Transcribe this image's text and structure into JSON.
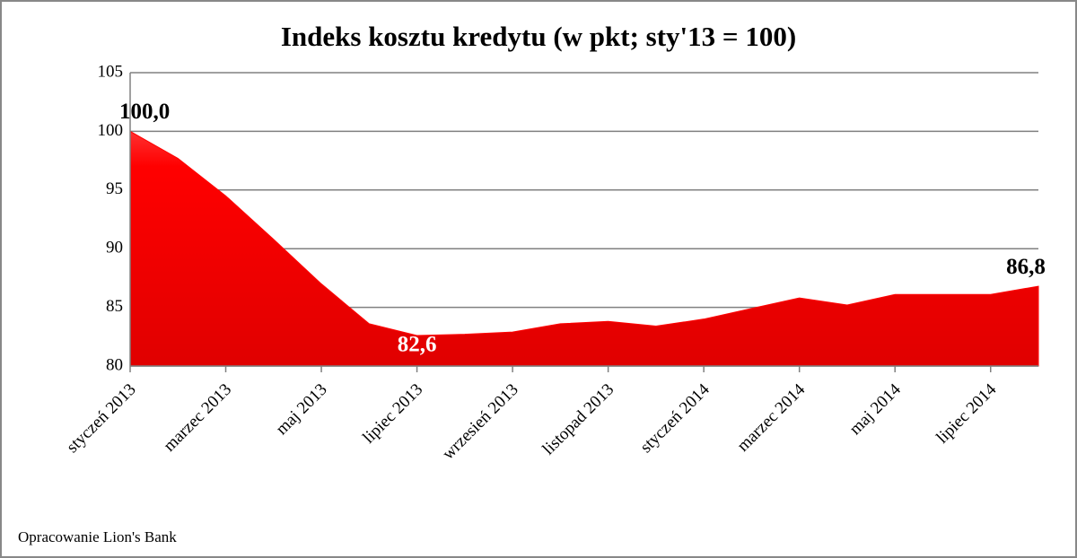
{
  "chart_data": {
    "type": "area",
    "title": "Indeks kosztu kredytu (w pkt; sty'13 = 100)",
    "categories": [
      "styczeń 2013",
      null,
      "marzec 2013",
      null,
      "maj 2013",
      null,
      "lipiec 2013",
      null,
      "wrzesień 2013",
      null,
      "listopad 2013",
      null,
      "styczeń 2014",
      null,
      "marzec 2014",
      null,
      "maj 2014",
      null,
      "lipiec 2014",
      null
    ],
    "values": [
      100.0,
      97.7,
      94.5,
      90.8,
      87.0,
      83.6,
      82.6,
      82.7,
      82.9,
      83.6,
      83.8,
      83.4,
      84.0,
      84.9,
      85.8,
      85.2,
      86.1,
      86.1,
      86.1,
      86.8
    ],
    "value_labels": [
      "100,0",
      null,
      null,
      null,
      null,
      null,
      "82,6",
      null,
      null,
      null,
      null,
      null,
      null,
      null,
      null,
      null,
      null,
      null,
      null,
      "86,8"
    ],
    "color": "#ff0000",
    "ylim": [
      80,
      105
    ],
    "yticks": [
      80,
      85,
      90,
      95,
      100,
      105
    ],
    "grid": true,
    "source": "Opracowanie Lion's Bank"
  }
}
